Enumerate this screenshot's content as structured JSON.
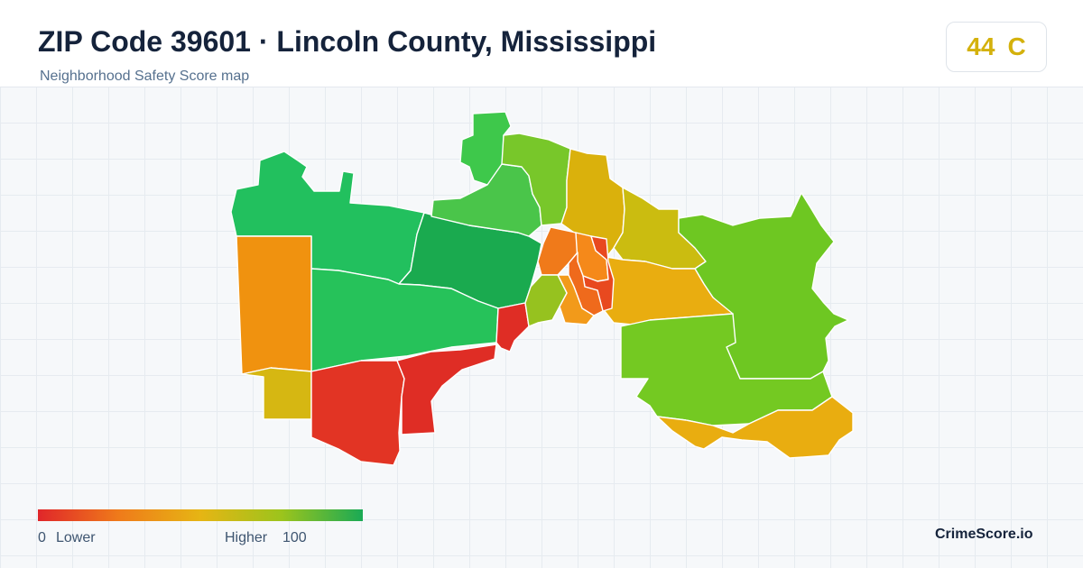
{
  "header": {
    "title": "ZIP Code 39601 · Lincoln County, Mississippi",
    "subtitle": "Neighborhood Safety Score map"
  },
  "score": {
    "value": "44",
    "grade": "C",
    "color": "#d4b10c"
  },
  "legend": {
    "min_value": "0",
    "min_label": "Lower",
    "max_label": "Higher",
    "max_value": "100",
    "gradient_colors": [
      "#e0262a",
      "#ef7b1a",
      "#e6b514",
      "#9cc41c",
      "#1aaa55"
    ]
  },
  "brand": "CrimeScore.io",
  "map_regions": [
    {
      "name": "region-northwest",
      "color": "#22c05e"
    },
    {
      "name": "region-north-center",
      "color": "#1aaa4f"
    },
    {
      "name": "region-west-center",
      "color": "#26c25a"
    },
    {
      "name": "region-far-west",
      "color": "#f0920f"
    },
    {
      "name": "region-southwest-small",
      "color": "#d6b712"
    },
    {
      "name": "region-southwest",
      "color": "#e23424"
    },
    {
      "name": "region-south-center",
      "color": "#df2d25"
    },
    {
      "name": "region-small-red",
      "color": "#df2d25"
    },
    {
      "name": "region-north-top",
      "color": "#3ec84b"
    },
    {
      "name": "region-north-center-2",
      "color": "#4ac54a"
    },
    {
      "name": "region-north-lime",
      "color": "#78c72a"
    },
    {
      "name": "region-north-yellow",
      "color": "#dab10c"
    },
    {
      "name": "region-northeast-olive",
      "color": "#cbbc10"
    },
    {
      "name": "region-east",
      "color": "#6ec722"
    },
    {
      "name": "region-center-orange",
      "color": "#e9ad10"
    },
    {
      "name": "region-southeast-green",
      "color": "#74c922"
    },
    {
      "name": "region-southeast-yellow",
      "color": "#e9ad10"
    },
    {
      "name": "region-downtown-1",
      "color": "#f07a1a"
    },
    {
      "name": "region-downtown-2",
      "color": "#f5891a"
    },
    {
      "name": "region-downtown-3",
      "color": "#e8491f"
    },
    {
      "name": "region-downtown-4",
      "color": "#ef6a1c"
    },
    {
      "name": "region-downtown-5",
      "color": "#f29a1a"
    },
    {
      "name": "region-downtown-6",
      "color": "#96c21f"
    }
  ]
}
